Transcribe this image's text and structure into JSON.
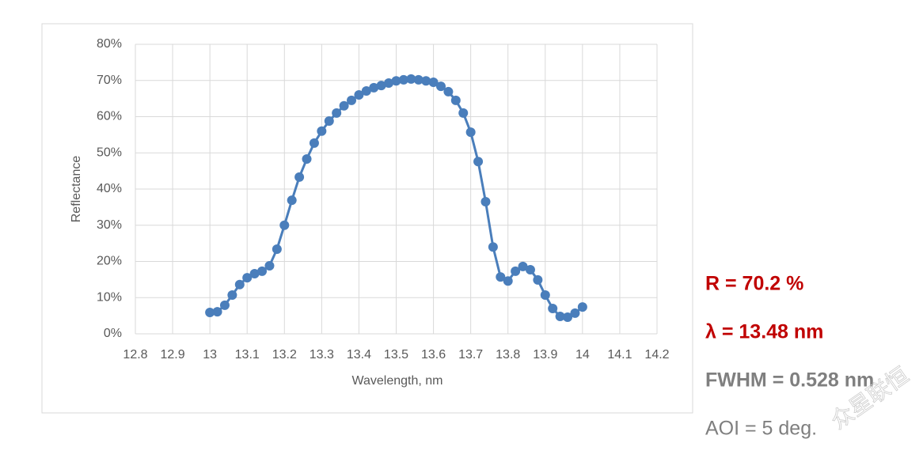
{
  "chart_data": {
    "type": "line",
    "x_label": "Wavelength, nm",
    "y_label": "Reflectance",
    "x": [
      13,
      13.02,
      13.04,
      13.06,
      13.08,
      13.1,
      13.12,
      13.14,
      13.16,
      13.18,
      13.2,
      13.22,
      13.24,
      13.26,
      13.28,
      13.3,
      13.32,
      13.34,
      13.36,
      13.38,
      13.4,
      13.42,
      13.44,
      13.46,
      13.48,
      13.5,
      13.52,
      13.54,
      13.56,
      13.58,
      13.6,
      13.62,
      13.64,
      13.66,
      13.68,
      13.7,
      13.72,
      13.74,
      13.76,
      13.78,
      13.8,
      13.82,
      13.84,
      13.86,
      13.88,
      13.9,
      13.92,
      13.94,
      13.96,
      13.98,
      14
    ],
    "series": [
      {
        "color": "#4a7ebb",
        "values": [
          5.9,
          6.1,
          7.9,
          10.7,
          13.6,
          15.5,
          16.6,
          17.3,
          18.8,
          23.4,
          30,
          36.9,
          43.3,
          48.3,
          52.7,
          56,
          58.8,
          61,
          63,
          64.5,
          66,
          67.1,
          68,
          68.6,
          69.3,
          69.9,
          70.2,
          70.4,
          70.2,
          69.9,
          69.5,
          68.4,
          66.9,
          64.5,
          61,
          55.7,
          47.6,
          36.5,
          24,
          15.7,
          14.6,
          17.3,
          18.6,
          17.7,
          14.9,
          10.7,
          7,
          4.8,
          4.6,
          5.7,
          7.4
        ]
      }
    ],
    "xlim": [
      12.8,
      14.2
    ],
    "xticks": [
      12.8,
      12.9,
      13,
      13.1,
      13.2,
      13.3,
      13.4,
      13.5,
      13.6,
      13.7,
      13.8,
      13.9,
      14,
      14.1,
      14.2
    ],
    "ylim": [
      0,
      80
    ],
    "yticks": [
      {
        "value": 0,
        "label": "0%"
      },
      {
        "value": 10,
        "label": "10%"
      },
      {
        "value": 20,
        "label": "20%"
      },
      {
        "value": 30,
        "label": "30%"
      },
      {
        "value": 40,
        "label": "40%"
      },
      {
        "value": 50,
        "label": "50%"
      },
      {
        "value": 60,
        "label": "60%"
      },
      {
        "value": 70,
        "label": "70%"
      },
      {
        "value": 80,
        "label": "80%"
      }
    ],
    "grid": true,
    "annotations": [
      {
        "text": "R = 70.2 %",
        "color": "#c00000"
      },
      {
        "text": "λ = 13.48 nm",
        "color": "#c00000"
      },
      {
        "text": "FWHM = 0.528 nm",
        "color": "#7f7f7f"
      },
      {
        "text": "AOI = 5 deg.",
        "color": "#7f7f7f"
      }
    ],
    "watermark": "众星联恒"
  }
}
